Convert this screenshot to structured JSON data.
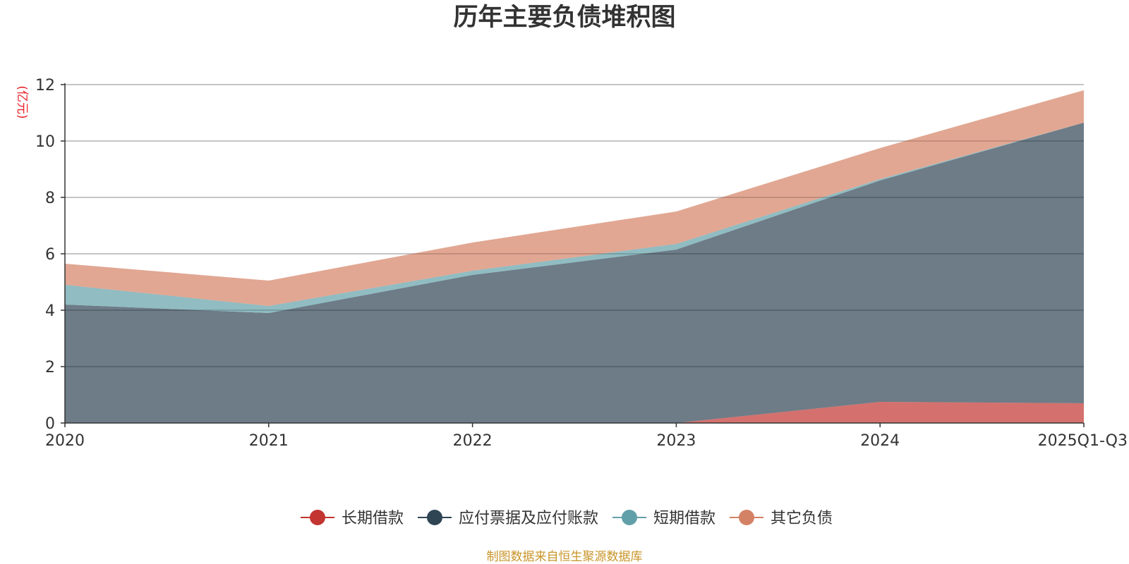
{
  "chart_data": {
    "type": "area",
    "stacked": true,
    "title": "历年主要负债堆积图",
    "y_unit": "(亿元)",
    "categories": [
      "2020",
      "2021",
      "2022",
      "2023",
      "2024",
      "2025Q1-Q3"
    ],
    "ylim": [
      0,
      12
    ],
    "y_ticks": [
      0,
      2,
      4,
      6,
      8,
      10,
      12
    ],
    "grid": true,
    "legend_position": "bottom",
    "series": [
      {
        "name": "长期借款",
        "color": "#c23531",
        "values": [
          0,
          0,
          0,
          0,
          0.75,
          0.7
        ]
      },
      {
        "name": "应付票据及应付账款",
        "color": "#2f4554",
        "values": [
          4.2,
          3.9,
          5.25,
          6.15,
          7.85,
          9.95
        ]
      },
      {
        "name": "短期借款",
        "color": "#61a0a8",
        "values": [
          0.7,
          0.25,
          0.15,
          0.2,
          0.05,
          0
        ]
      },
      {
        "name": "其它负债",
        "color": "#d48265",
        "values": [
          0.75,
          0.9,
          1.0,
          1.15,
          1.1,
          1.15
        ]
      }
    ]
  },
  "source": "制图数据来自恒生聚源数据库"
}
